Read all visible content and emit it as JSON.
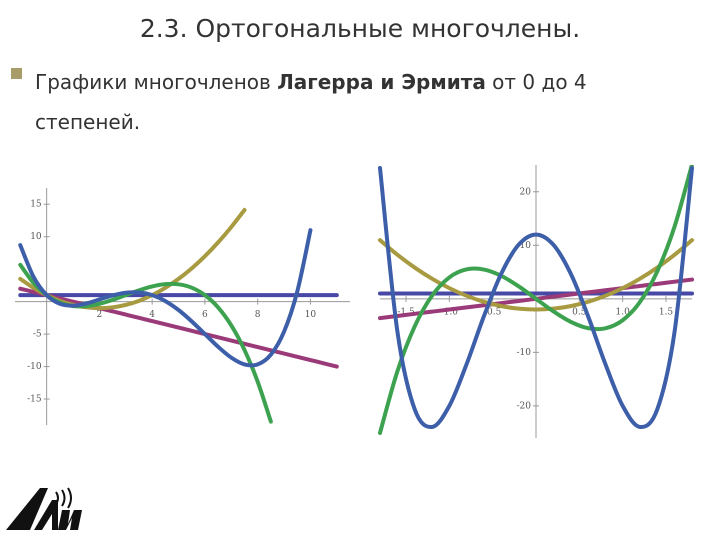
{
  "title": "2.3. Ортогональные многочлены.",
  "bullet": {
    "segments": [
      "Графики многочленов ",
      "Лагерра и Эрмита",
      " от 0 до 4",
      "степеней."
    ]
  },
  "chart_data": [
    {
      "type": "line",
      "x": [
        -1,
        -0.5,
        0,
        0.5,
        1,
        1.5,
        2,
        2.5,
        3,
        3.5,
        4,
        4.5,
        5,
        5.5,
        6,
        6.5,
        7,
        7.5,
        8,
        8.5,
        9,
        9.5,
        10,
        10.5,
        11
      ],
      "xlim": [
        -1.2,
        11.5
      ],
      "ylim": [
        -19,
        17.5
      ],
      "xticks": [
        2,
        4,
        6,
        8,
        10
      ],
      "yticks": [
        -15,
        -10,
        -5,
        10,
        15
      ],
      "grid": false,
      "series": [
        {
          "color": "#4848a6",
          "values": [
            1,
            1,
            1,
            1,
            1,
            1,
            1,
            1,
            1,
            1,
            1,
            1,
            1,
            1,
            1,
            1,
            1,
            1,
            1,
            1,
            1,
            1,
            1,
            1,
            1
          ]
        },
        {
          "color": "#9a3a78",
          "values": [
            2,
            1.5,
            1,
            0.5,
            0,
            -0.5,
            -1,
            -1.5,
            -2,
            -2.5,
            -3,
            -3.5,
            -4,
            -4.5,
            -5,
            -5.5,
            -6,
            -6.5,
            -7,
            -7.5,
            -8,
            -8.5,
            -9,
            -9.5,
            -10
          ]
        },
        {
          "color": "#a89a40",
          "values": [
            3.5,
            2.125,
            1,
            0.125,
            -0.5,
            -0.875,
            -1,
            -0.875,
            -0.5,
            0.125,
            1,
            2.125,
            3.5,
            5.125,
            7,
            9.125,
            11.5,
            14.125,
            null,
            null,
            null,
            null,
            null,
            null,
            null
          ]
        },
        {
          "color": "#3da24f",
          "values": [
            5.667,
            2.896,
            1,
            -0.146,
            -0.667,
            -0.688,
            -0.333,
            0.271,
            1,
            1.729,
            2.333,
            2.688,
            2.667,
            2.146,
            1,
            -0.896,
            -3.667,
            -7.438,
            -12.333,
            -18.479,
            null,
            null,
            null,
            null,
            null
          ]
        },
        {
          "color": "#3d5ea8",
          "values": [
            8.708,
            3.836,
            1,
            -0.331,
            -0.625,
            -0.289,
            0.333,
            0.961,
            1.375,
            1.419,
            1,
            0.086,
            -1.292,
            -3.039,
            -5,
            -6.956,
            -8.625,
            -9.664,
            -9.667,
            -8.164,
            -4.625,
            1.544,
            11,
            null,
            null
          ]
        }
      ]
    },
    {
      "type": "line",
      "x": [
        -1.8,
        -1.6,
        -1.4,
        -1.2,
        -1,
        -0.8,
        -0.6,
        -0.4,
        -0.2,
        0,
        0.2,
        0.4,
        0.6,
        0.8,
        1,
        1.2,
        1.4,
        1.6,
        1.8
      ],
      "xlim": [
        -1.8,
        1.8
      ],
      "ylim": [
        -26,
        25
      ],
      "xticks": [
        -1.5,
        {
          "value": -1,
          "label": "-1.0"
        },
        -0.5,
        0.5,
        {
          "value": 1,
          "label": "1.0"
        },
        1.5
      ],
      "yticks": [
        -20,
        -10,
        10,
        20
      ],
      "grid": false,
      "series": [
        {
          "color": "#4848a6",
          "values": [
            1,
            1,
            1,
            1,
            1,
            1,
            1,
            1,
            1,
            1,
            1,
            1,
            1,
            1,
            1,
            1,
            1,
            1,
            1
          ]
        },
        {
          "color": "#9a3a78",
          "values": [
            -3.6,
            -3.2,
            -2.8,
            -2.4,
            -2,
            -1.6,
            -1.2,
            -0.8,
            -0.4,
            0,
            0.4,
            0.8,
            1.2,
            1.6,
            2,
            2.4,
            2.8,
            3.2,
            3.6
          ]
        },
        {
          "color": "#a89a40",
          "values": [
            10.96,
            8.24,
            5.84,
            3.76,
            2,
            0.56,
            -0.56,
            -1.36,
            -1.84,
            -2,
            -1.84,
            -1.36,
            -0.56,
            0.56,
            2,
            3.76,
            5.84,
            8.24,
            10.96
          ]
        },
        {
          "color": "#3da24f",
          "values": [
            -25.056,
            -13.568,
            -5.152,
            0.576,
            4,
            5.504,
            5.472,
            4.288,
            2.336,
            0,
            -2.336,
            -4.288,
            -5.472,
            -5.504,
            -4,
            -0.576,
            5.152,
            13.568,
            25.056
          ]
        },
        {
          "color": "#3d5ea8",
          "values": [
            24.4416,
            -6.0224,
            -20.6144,
            -23.9424,
            -20,
            -12.1664,
            -3.2064,
            4.7296,
            10.1056,
            12,
            10.1056,
            4.7296,
            -3.2064,
            -12.1664,
            -20,
            -23.9424,
            -20.6144,
            -6.0224,
            24.4416
          ]
        }
      ]
    }
  ]
}
